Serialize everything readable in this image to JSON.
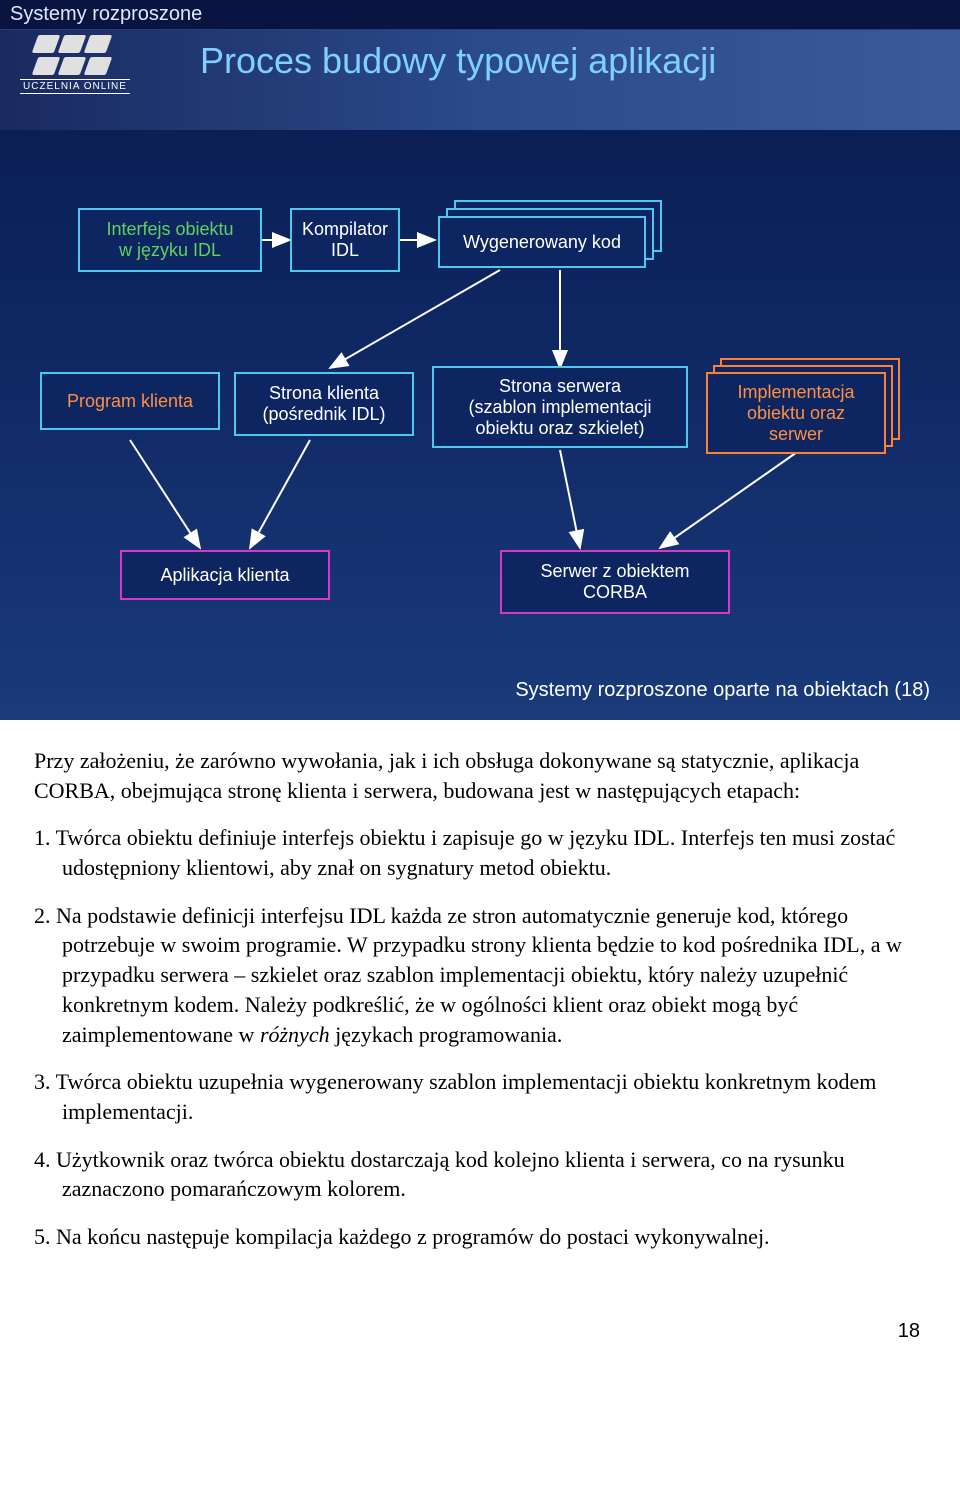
{
  "slide": {
    "header": "Systemy rozproszone",
    "title": "Proces budowy typowej aplikacji",
    "logo_label": "UCZELNIA ONLINE",
    "footer": "Systemy rozproszone oparte na obiektach (18)",
    "colors": {
      "bg_top": "#0a1a4a",
      "bg_bottom": "#1a3a7a",
      "title_band": "#2a4a8a",
      "title_text": "#7fd0ff",
      "header_text": "#dfe8ff",
      "node_fill": "#0d2560",
      "border_cyan": "#4fc8f0",
      "border_orange": "#ff8030",
      "border_magenta": "#d838c8",
      "text_green": "#60d060",
      "text_orange": "#ff9040",
      "text_white": "#ffffff",
      "arrow": "#ffffff"
    },
    "nodes": {
      "idl_interface": {
        "label": "Interfejs obiektu\nw języku IDL",
        "text_color": "#60d060",
        "border": "#4fc8f0"
      },
      "idl_compiler": {
        "label": "Kompilator\nIDL",
        "text_color": "#ffffff",
        "border": "#4fc8f0"
      },
      "gen_code": {
        "label": "Wygenerowany kod",
        "text_color": "#ffffff",
        "border": "#4fc8f0",
        "stacked": true
      },
      "client_prog": {
        "label": "Program klienta",
        "text_color": "#ff9040",
        "border": "#4fc8f0"
      },
      "client_stub": {
        "label": "Strona klienta\n(pośrednik IDL)",
        "text_color": "#ffffff",
        "border": "#4fc8f0"
      },
      "server_skel": {
        "label": "Strona serwera\n(szablon implementacji\nobiektu oraz szkielet)",
        "text_color": "#ffffff",
        "border": "#4fc8f0"
      },
      "impl": {
        "label": "Implementacja\nobiektu oraz\nserwer",
        "text_color": "#ff9040",
        "border": "#ff8030",
        "stacked": true
      },
      "client_app": {
        "label": "Aplikacja klienta",
        "text_color": "#ffffff",
        "border": "#d838c8"
      },
      "server_corba": {
        "label": "Serwer z obiektem\nCORBA",
        "text_color": "#ffffff",
        "border": "#d838c8"
      }
    },
    "edges": [
      {
        "from": "idl_interface",
        "to": "idl_compiler"
      },
      {
        "from": "idl_compiler",
        "to": "gen_code"
      },
      {
        "from": "gen_code",
        "to": "client_stub"
      },
      {
        "from": "gen_code",
        "to": "server_skel"
      },
      {
        "from": "client_prog",
        "to": "client_app"
      },
      {
        "from": "client_stub",
        "to": "client_app"
      },
      {
        "from": "server_skel",
        "to": "server_corba"
      },
      {
        "from": "impl",
        "to": "server_corba"
      }
    ]
  },
  "doc": {
    "intro": "Przy założeniu, że zarówno wywołania, jak i ich obsługa dokonywane są statycznie, aplikacja CORBA, obejmująca stronę klienta i serwera, budowana jest w następujących etapach:",
    "items": [
      "1. Twórca obiektu definiuje interfejs obiektu i zapisuje go w języku IDL. Interfejs ten musi zostać udostępniony klientowi, aby znał on sygnatury metod obiektu.",
      "2. Na podstawie definicji interfejsu IDL każda ze stron automatycznie generuje kod, którego potrzebuje w swoim programie. W przypadku strony klienta będzie to kod pośrednika IDL, a w przypadku serwera – szkielet oraz szablon implementacji obiektu, który należy uzupełnić konkretnym kodem. Należy podkreślić, że w ogólności klient oraz obiekt mogą być zaimplementowane w różnych językach programowania.",
      "3. Twórca obiektu uzupełnia wygenerowany szablon implementacji obiektu konkretnym kodem implementacji.",
      "4. Użytkownik oraz twórca obiektu dostarczają kod kolejno klienta i serwera, co na rysunku zaznaczono pomarańczowym kolorem.",
      "5. Na końcu następuje kompilacja każdego z programów do postaci wykonywalnej."
    ],
    "italic_word": "różnych",
    "page_number": "18"
  }
}
